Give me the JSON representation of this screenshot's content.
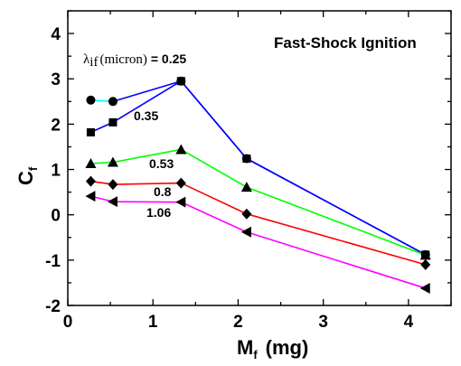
{
  "chart_data": {
    "type": "line",
    "title": "Fast-Shock Ignition",
    "xlabel": {
      "main": "M",
      "sub": "f",
      "unit": "(mg)"
    },
    "ylabel": {
      "main": "C",
      "sub": "f"
    },
    "xlim": [
      0,
      4.5
    ],
    "ylim": [
      -2,
      4.5
    ],
    "xticks": [
      0,
      1,
      2,
      3,
      4
    ],
    "yticks": [
      -2,
      -1,
      0,
      1,
      2,
      3,
      4
    ],
    "grid": false,
    "legend_heading": {
      "symbol": "λ",
      "sub": "if",
      "unit": "(micron)",
      "eq": " = "
    },
    "series": [
      {
        "name": "0.25",
        "marker": "circle",
        "color": "#00ffff",
        "color2": "#0000ff",
        "points": [
          [
            0.27,
            2.53
          ],
          [
            0.53,
            2.5
          ],
          [
            1.33,
            2.95
          ],
          [
            2.1,
            1.24
          ],
          [
            4.2,
            -0.88
          ]
        ]
      },
      {
        "name": "0.35",
        "marker": "square",
        "color": "#0000ff",
        "points": [
          [
            0.27,
            1.82
          ],
          [
            0.53,
            2.04
          ],
          [
            1.33,
            2.95
          ],
          [
            2.1,
            1.24
          ],
          [
            4.2,
            -0.88
          ]
        ]
      },
      {
        "name": "0.53",
        "marker": "triangle-up",
        "color": "#00ff00",
        "points": [
          [
            0.27,
            1.13
          ],
          [
            0.53,
            1.16
          ],
          [
            1.33,
            1.44
          ],
          [
            2.1,
            0.61
          ],
          [
            4.2,
            -0.89
          ]
        ]
      },
      {
        "name": "0.8",
        "marker": "diamond",
        "color": "#ff0000",
        "points": [
          [
            0.27,
            0.74
          ],
          [
            0.53,
            0.67
          ],
          [
            1.33,
            0.7
          ],
          [
            2.1,
            0.02
          ],
          [
            4.2,
            -1.1
          ]
        ]
      },
      {
        "name": "1.06",
        "marker": "triangle-left",
        "color": "#ff00ff",
        "points": [
          [
            0.27,
            0.41
          ],
          [
            0.53,
            0.29
          ],
          [
            1.33,
            0.28
          ],
          [
            2.1,
            -0.38
          ],
          [
            4.2,
            -1.62
          ]
        ]
      }
    ]
  }
}
